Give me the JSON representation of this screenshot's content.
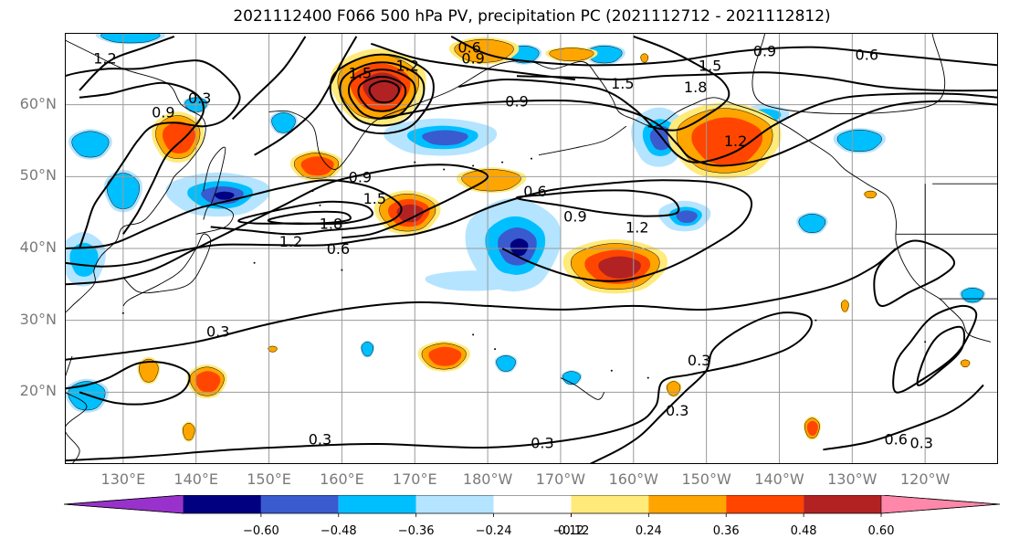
{
  "title": "2021112400 F066 500 hPa PV, precipitation PC (2021112712 - 2021112812)",
  "map": {
    "extent_lon": [
      122,
      250
    ],
    "extent_lat": [
      10,
      70
    ],
    "lat_ticks": [
      {
        "lat": 60,
        "label": "60°N"
      },
      {
        "lat": 50,
        "label": "50°N"
      },
      {
        "lat": 40,
        "label": "40°N"
      },
      {
        "lat": 30,
        "label": "30°N"
      },
      {
        "lat": 20,
        "label": "20°N"
      }
    ],
    "lon_ticks": [
      {
        "lon": 130,
        "label": "130°E"
      },
      {
        "lon": 140,
        "label": "140°E"
      },
      {
        "lon": 150,
        "label": "150°E"
      },
      {
        "lon": 160,
        "label": "160°E"
      },
      {
        "lon": 170,
        "label": "170°E"
      },
      {
        "lon": 180,
        "label": "180°W"
      },
      {
        "lon": 190,
        "label": "170°W"
      },
      {
        "lon": 200,
        "label": "160°W"
      },
      {
        "lon": 210,
        "label": "150°W"
      },
      {
        "lon": 220,
        "label": "140°W"
      },
      {
        "lon": 230,
        "label": "130°W"
      },
      {
        "lon": 240,
        "label": "120°W"
      }
    ],
    "contour_labels": [
      {
        "text": "1.2",
        "lon": 127.5,
        "lat": 66.5
      },
      {
        "text": "0.9",
        "lon": 135.5,
        "lat": 59
      },
      {
        "text": "0.3",
        "lon": 140.5,
        "lat": 61
      },
      {
        "text": "0.6",
        "lon": 177.5,
        "lat": 68
      },
      {
        "text": "0.9",
        "lon": 178,
        "lat": 66.5
      },
      {
        "text": "1.2",
        "lon": 169,
        "lat": 65.5
      },
      {
        "text": "1.5",
        "lon": 162.5,
        "lat": 64.5
      },
      {
        "text": "0.9",
        "lon": 184,
        "lat": 60.5
      },
      {
        "text": "1.5",
        "lon": 198.5,
        "lat": 63
      },
      {
        "text": "1.5",
        "lon": 210.5,
        "lat": 65.5
      },
      {
        "text": "1.8",
        "lon": 208.5,
        "lat": 62.5
      },
      {
        "text": "0.9",
        "lon": 218,
        "lat": 67.5
      },
      {
        "text": "0.6",
        "lon": 232,
        "lat": 67
      },
      {
        "text": "1.2",
        "lon": 214,
        "lat": 55
      },
      {
        "text": "0.9",
        "lon": 162.5,
        "lat": 50
      },
      {
        "text": "1.5",
        "lon": 164.5,
        "lat": 47
      },
      {
        "text": "1.8",
        "lon": 158.5,
        "lat": 43.5
      },
      {
        "text": "1.2",
        "lon": 153,
        "lat": 41
      },
      {
        "text": "0.6",
        "lon": 159.5,
        "lat": 40
      },
      {
        "text": "0.6",
        "lon": 186.5,
        "lat": 48
      },
      {
        "text": "0.9",
        "lon": 192,
        "lat": 44.5
      },
      {
        "text": "1.2",
        "lon": 200.5,
        "lat": 43
      },
      {
        "text": "0.3",
        "lon": 143,
        "lat": 28.5
      },
      {
        "text": "0.3",
        "lon": 209,
        "lat": 24.5
      },
      {
        "text": "0.3",
        "lon": 157,
        "lat": 13.5
      },
      {
        "text": "0.3",
        "lon": 187.5,
        "lat": 13
      },
      {
        "text": "0.3",
        "lon": 206,
        "lat": 17.5
      },
      {
        "text": "0.6",
        "lon": 236,
        "lat": 13.5
      },
      {
        "text": "0.3",
        "lon": 239.5,
        "lat": 13
      }
    ]
  },
  "colorbar": {
    "colors": [
      "#9932cc",
      "#000080",
      "#3a5ad0",
      "#00bfff",
      "#b4e4ff",
      "#ffffff",
      "#ffea7a",
      "#ffa500",
      "#ff4500",
      "#b22222",
      "#ff88aa"
    ],
    "tick_values": [
      -0.6,
      -0.48,
      -0.36,
      -0.24,
      -0.12,
      0.12,
      0.24,
      0.36,
      0.48,
      0.6
    ],
    "tick_labels": [
      "−0.60",
      "−0.48",
      "−0.36",
      "−0.24",
      "−0.12",
      "0.12",
      "0.24",
      "0.36",
      "0.48",
      "0.60"
    ]
  },
  "colors": {
    "contour": "#000000",
    "grid": "#9a9a9a",
    "coast": "#000000",
    "tick_label": "#7a7a7a"
  }
}
